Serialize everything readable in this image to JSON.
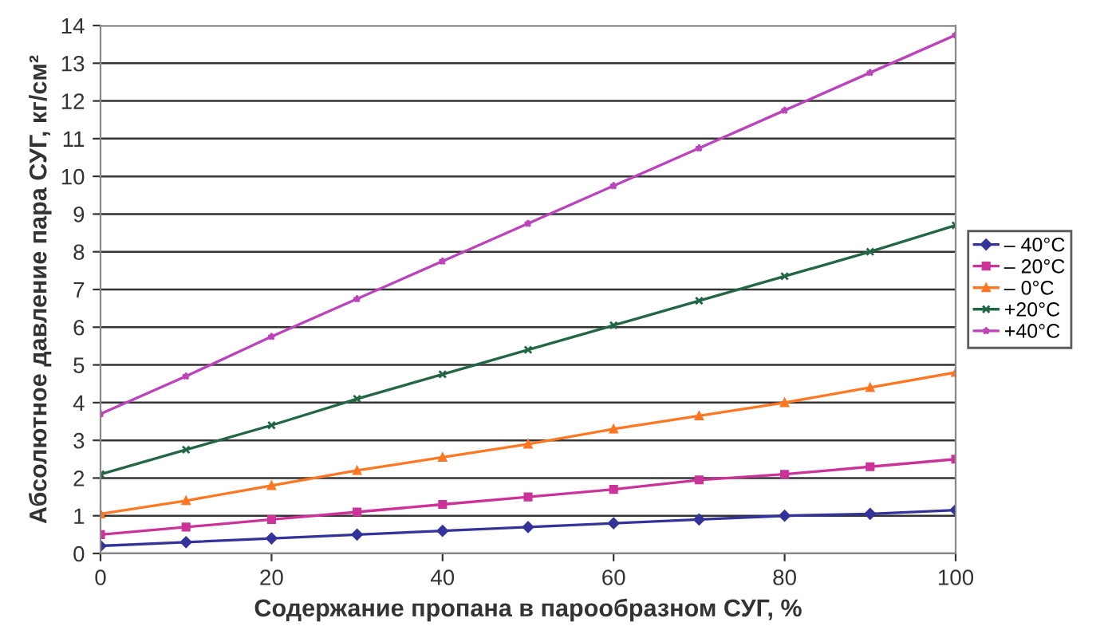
{
  "chart_data": {
    "type": "line",
    "xlabel": "Содержание пропана в парообразном СУГ, %",
    "ylabel": "Абсолютное давление пара СУГ, кг/см²",
    "x": [
      0,
      10,
      20,
      30,
      40,
      50,
      60,
      70,
      80,
      90,
      100
    ],
    "series": [
      {
        "name": "– 40°C",
        "color": "#333399",
        "marker": "diamond",
        "values": [
          0.2,
          0.3,
          0.4,
          0.5,
          0.6,
          0.7,
          0.8,
          0.9,
          1.0,
          1.05,
          1.15
        ]
      },
      {
        "name": "– 20°C",
        "color": "#cc3399",
        "marker": "square",
        "values": [
          0.5,
          0.7,
          0.9,
          1.1,
          1.3,
          1.5,
          1.7,
          1.95,
          2.1,
          2.3,
          2.5
        ]
      },
      {
        "name": "– 0°C",
        "color": "#ff7722",
        "marker": "triangle",
        "values": [
          1.05,
          1.4,
          1.8,
          2.2,
          2.55,
          2.9,
          3.3,
          3.65,
          4.0,
          4.4,
          4.8
        ]
      },
      {
        "name": "+20°C",
        "color": "#226644",
        "marker": "cross",
        "values": [
          2.1,
          2.75,
          3.4,
          4.1,
          4.75,
          5.4,
          6.05,
          6.7,
          7.35,
          8.0,
          8.7
        ]
      },
      {
        "name": "+40°C",
        "color": "#bb44bb",
        "marker": "star",
        "values": [
          3.7,
          4.7,
          5.75,
          6.75,
          7.75,
          8.75,
          9.75,
          10.75,
          11.75,
          12.75,
          13.75
        ]
      }
    ],
    "xlim": [
      0,
      100
    ],
    "xticks": [
      0,
      20,
      40,
      60,
      80,
      100
    ],
    "ylim": [
      0,
      14
    ],
    "yticks": [
      0,
      1,
      2,
      3,
      4,
      5,
      6,
      7,
      8,
      9,
      10,
      11,
      12,
      13,
      14
    ],
    "grid": "y",
    "legend": "right"
  }
}
